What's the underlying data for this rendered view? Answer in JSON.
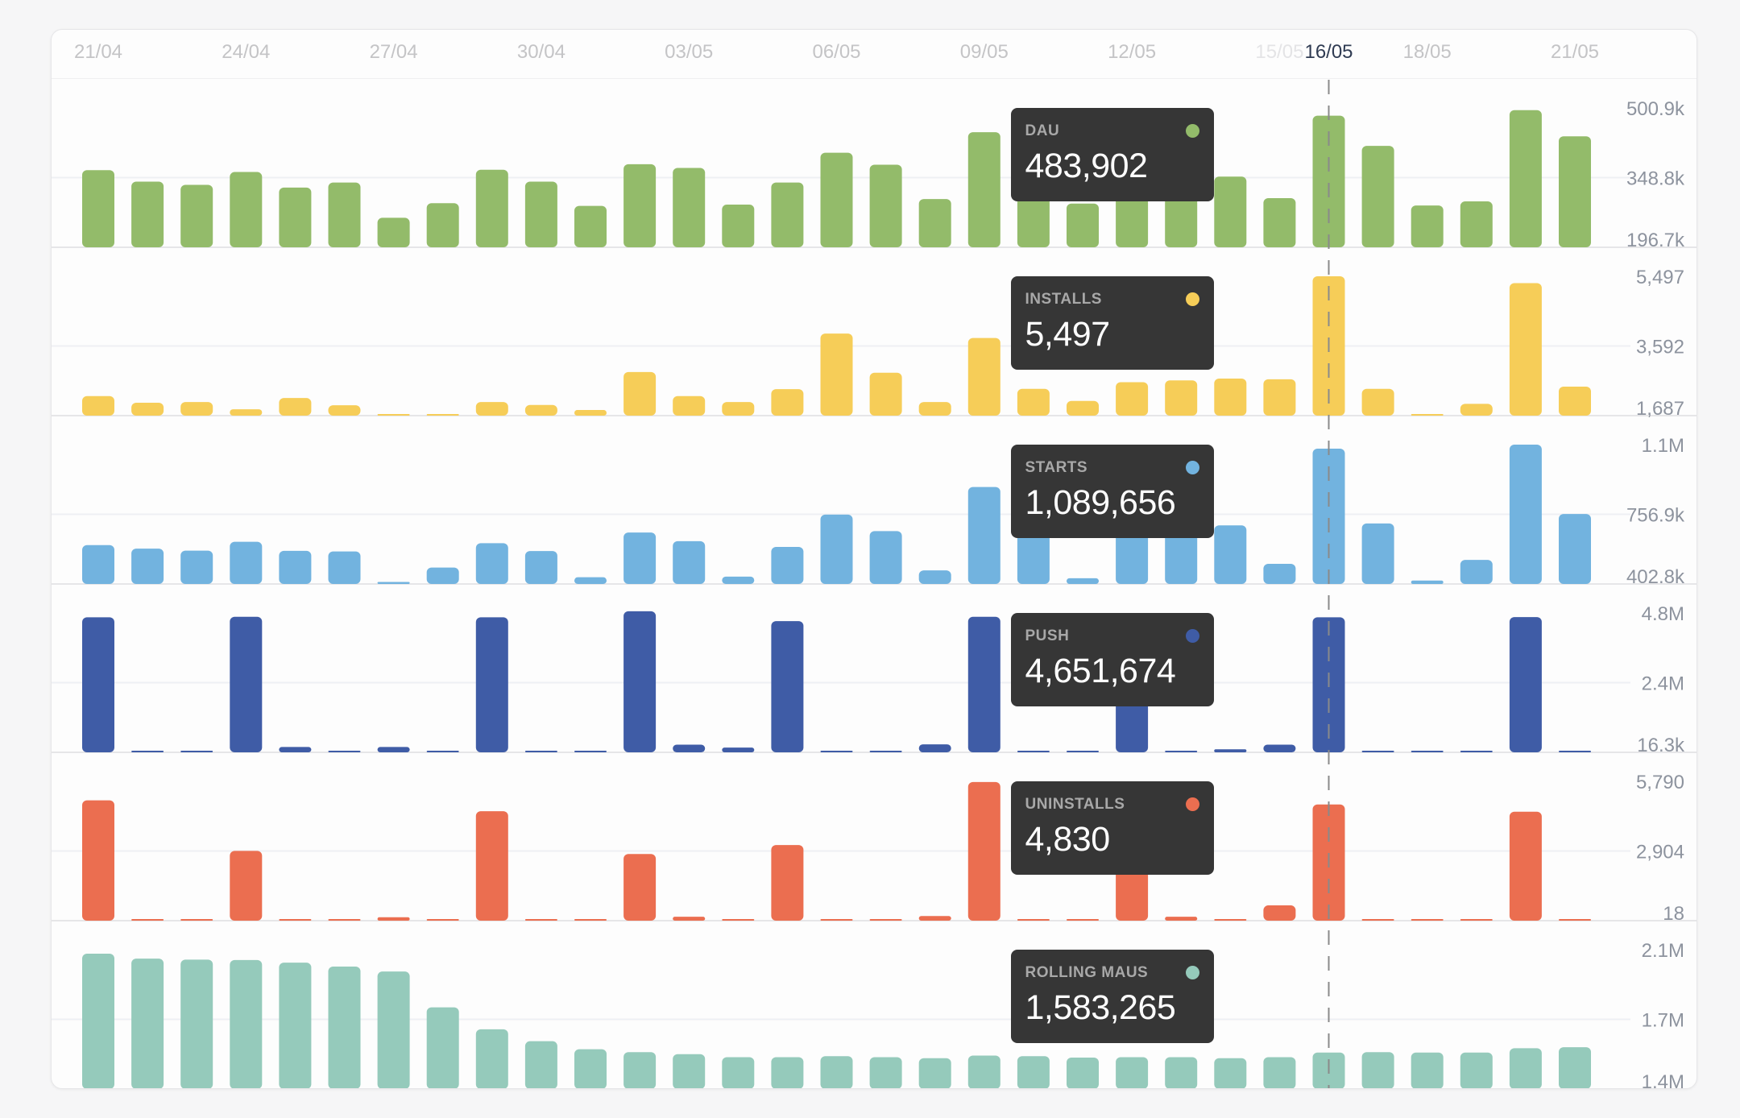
{
  "chart_data": {
    "type": "bar",
    "title": "",
    "x": [
      "21/04",
      "22/04",
      "23/04",
      "24/04",
      "25/04",
      "26/04",
      "27/04",
      "28/04",
      "29/04",
      "30/04",
      "01/05",
      "02/05",
      "03/05",
      "04/05",
      "05/05",
      "06/05",
      "07/05",
      "08/05",
      "09/05",
      "10/05",
      "11/05",
      "12/05",
      "13/05",
      "14/05",
      "15/05",
      "16/05",
      "17/05",
      "18/05",
      "19/05",
      "20/05",
      "21/05"
    ],
    "x_tick_labels": [
      "21/04",
      "24/04",
      "27/04",
      "30/04",
      "03/05",
      "06/05",
      "09/05",
      "12/05",
      "15/05",
      "16/05",
      "18/05",
      "21/05"
    ],
    "highlighted_x": "16/05",
    "legend": "tooltips-per-panel",
    "grid": true,
    "series": [
      {
        "name": "DAU",
        "color": "#93bb6a",
        "tick_labels": [
          "500.9k",
          "348.8k",
          "196.7k"
        ],
        "ylim": [
          196700,
          500900
        ],
        "hover_value": "483,902",
        "values": [
          365000,
          340000,
          333000,
          361000,
          327000,
          338000,
          261000,
          293000,
          366000,
          340000,
          287000,
          378000,
          370000,
          290000,
          338000,
          403000,
          377000,
          302000,
          448000,
          409000,
          292000,
          346000,
          344000,
          351000,
          304000,
          483902,
          418000,
          288000,
          297000,
          496000,
          439000
        ]
      },
      {
        "name": "INSTALLS",
        "color": "#f6cd58",
        "tick_labels": [
          "5,497",
          "3,592",
          "1,687"
        ],
        "ylim": [
          1687,
          5497
        ],
        "hover_value": "5,497",
        "values": [
          2220,
          2040,
          2060,
          1860,
          2170,
          1970,
          1520,
          1710,
          2060,
          1980,
          1840,
          2880,
          2220,
          2060,
          2410,
          3930,
          2860,
          2060,
          3810,
          2420,
          2090,
          2600,
          2650,
          2700,
          2680,
          5497,
          2420,
          1580,
          2010,
          5310,
          2480
        ]
      },
      {
        "name": "STARTS",
        "color": "#72b3df",
        "tick_labels": [
          "1.1M",
          "756.9k",
          "402.8k"
        ],
        "ylim": [
          402800,
          1110000
        ],
        "hover_value": "1,089,656",
        "values": [
          600000,
          582000,
          572000,
          617000,
          571000,
          568000,
          413000,
          486000,
          610000,
          570000,
          437000,
          664000,
          620000,
          440000,
          591000,
          755000,
          671000,
          472000,
          895000,
          693000,
          432000,
          700000,
          700000,
          700000,
          505000,
          1089656,
          710000,
          420000,
          525000,
          1110000,
          758000
        ]
      },
      {
        "name": "PUSH",
        "color": "#3f5ca6",
        "tick_labels": [
          "4.8M",
          "2.4M",
          "16.3k"
        ],
        "ylim": [
          16300,
          4800000
        ],
        "hover_value": "4,651,674",
        "values": [
          4650000,
          16300,
          16300,
          4670000,
          200000,
          16300,
          200000,
          16300,
          4650000,
          16300,
          16300,
          4860000,
          280000,
          180000,
          4520000,
          16300,
          16300,
          290000,
          4670000,
          16300,
          16300,
          1800000,
          16300,
          120000,
          280000,
          4651674,
          16300,
          16300,
          16300,
          4660000,
          16300
        ]
      },
      {
        "name": "UNINSTALLS",
        "color": "#eb6e50",
        "tick_labels": [
          "5,790",
          "2,904",
          "18"
        ],
        "ylim": [
          18,
          5790
        ],
        "hover_value": "4,830",
        "values": [
          5000,
          18,
          80,
          2910,
          80,
          18,
          160,
          60,
          4550,
          18,
          18,
          2780,
          180,
          60,
          3150,
          18,
          18,
          210,
          5760,
          18,
          60,
          2500,
          180,
          60,
          650,
          4830,
          18,
          18,
          18,
          4530,
          18
        ]
      },
      {
        "name": "ROLLING MAUS",
        "color": "#95cabb",
        "tick_labels": [
          "2.1M",
          "1.7M",
          "1.4M"
        ],
        "ylim": [
          1400000,
          2100000
        ],
        "hover_value": "1,583,265",
        "values": [
          2080000,
          2055000,
          2050000,
          2048000,
          2035000,
          2015000,
          1990000,
          1810000,
          1700000,
          1640000,
          1600000,
          1585000,
          1575000,
          1560000,
          1560000,
          1565000,
          1560000,
          1555000,
          1568000,
          1565000,
          1558000,
          1560000,
          1560000,
          1555000,
          1560000,
          1583265,
          1585000,
          1583000,
          1583000,
          1605000,
          1610000
        ]
      }
    ]
  }
}
